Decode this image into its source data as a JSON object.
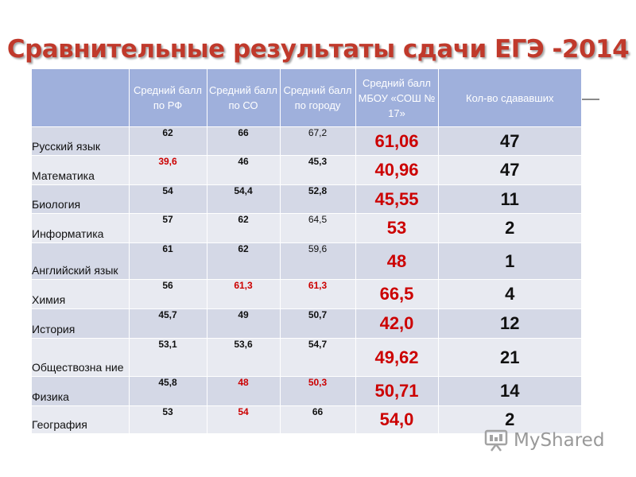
{
  "title": "Сравнительные результаты сдачи ЕГЭ -2014",
  "columns": [
    "",
    "Средний балл по РФ",
    "Средний балл по СО",
    "Средний балл по городу",
    "Средний балл МБОУ «СОШ № 17»",
    "Кол-во сдававших"
  ],
  "rows": [
    {
      "subject": "Русский язык",
      "rf": "62",
      "so": "66",
      "city": "67,2",
      "school": "61,06",
      "count": "47"
    },
    {
      "subject": "Математика",
      "rf": "39,6",
      "so": "46",
      "city": "45,3",
      "school": "40,96",
      "count": "47"
    },
    {
      "subject": "Биология",
      "rf": "54",
      "so": "54,4",
      "city": "52,8",
      "school": "45,55",
      "count": "11"
    },
    {
      "subject": "Информатика",
      "rf": "57",
      "so": "62",
      "city": "64,5",
      "school": "53",
      "count": "2"
    },
    {
      "subject": "Английский язык",
      "rf": "61",
      "so": "62",
      "city": "59,6",
      "school": "48",
      "count": "1"
    },
    {
      "subject": "Химия",
      "rf": "56",
      "so": "61,3",
      "city": "61,3",
      "school": "66,5",
      "count": "4"
    },
    {
      "subject": "История",
      "rf": "45,7",
      "so": "49",
      "city": "50,7",
      "school": "42,0",
      "count": "12"
    },
    {
      "subject": "Обществозна ние",
      "rf": "53,1",
      "so": "53,6",
      "city": "54,7",
      "school": "49,62",
      "count": "21"
    },
    {
      "subject": "Физика",
      "rf": "45,8",
      "so": "48",
      "city": "50,3",
      "school": "50,71",
      "count": "14"
    },
    {
      "subject": "География",
      "rf": "53",
      "so": "54",
      "city": "66",
      "school": "54,0",
      "count": "2"
    }
  ],
  "highlight_color": "#cc0000",
  "watermark": "MyShared"
}
